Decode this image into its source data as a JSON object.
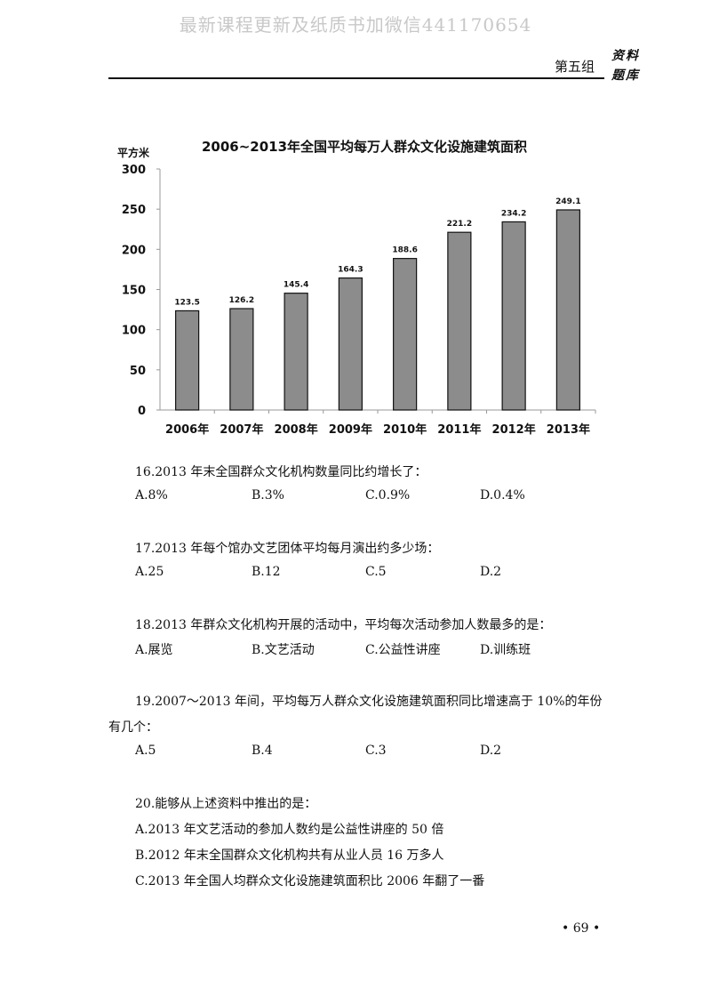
{
  "watermark": "最新课程更新及纸质书加微信441170654",
  "header": {
    "section": "第五组",
    "tag": "资料 题库"
  },
  "chart_data": {
    "type": "bar",
    "title": "2006~2013年全国平均每万人群众文化设施建筑面积",
    "ylabel": "平方米",
    "categories": [
      "2006年",
      "2007年",
      "2008年",
      "2009年",
      "2010年",
      "2011年",
      "2012年",
      "2013年"
    ],
    "values": [
      123.5,
      126.2,
      145.4,
      164.3,
      188.6,
      221.2,
      234.2,
      249.1
    ],
    "value_labels": [
      "123.5",
      "126.2",
      "145.4",
      "164.3",
      "188.6",
      "221.2",
      "234.2",
      "249.1"
    ],
    "ylim": [
      0,
      300
    ],
    "yticks": [
      "0",
      "50",
      "100",
      "150",
      "200",
      "250",
      "300"
    ],
    "grid": false,
    "bar_color": "#8c8c8c"
  },
  "questions": [
    {
      "stem": "16.2013 年末全国群众文化机构数量同比约增长了：",
      "options": [
        "A.8%",
        "B.3%",
        "C.0.9%",
        "D.0.4%"
      ]
    },
    {
      "stem": "17.2013 年每个馆办文艺团体平均每月演出约多少场：",
      "options": [
        "A.25",
        "B.12",
        "C.5",
        "D.2"
      ]
    },
    {
      "stem": "18.2013 年群众文化机构开展的活动中，平均每次活动参加人数最多的是：",
      "options": [
        "A.展览",
        "B.文艺活动",
        "C.公益性讲座",
        "D.训练班"
      ]
    },
    {
      "stem": "19.2007～2013 年间，平均每万人群众文化设施建筑面积同比增速高于 10%的年份",
      "stem_cont": "有几个：",
      "options": [
        "A.5",
        "B.4",
        "C.3",
        "D.2"
      ]
    },
    {
      "stem": "20.能够从上述资料中推出的是：",
      "lines": [
        "A.2013 年文艺活动的参加人数约是公益性讲座的 50 倍",
        "B.2012 年末全国群众文化机构共有从业人员 16 万多人",
        "C.2013 年全国人均群众文化设施建筑面积比 2006 年翻了一番"
      ]
    }
  ],
  "page_number": "• 69 •"
}
